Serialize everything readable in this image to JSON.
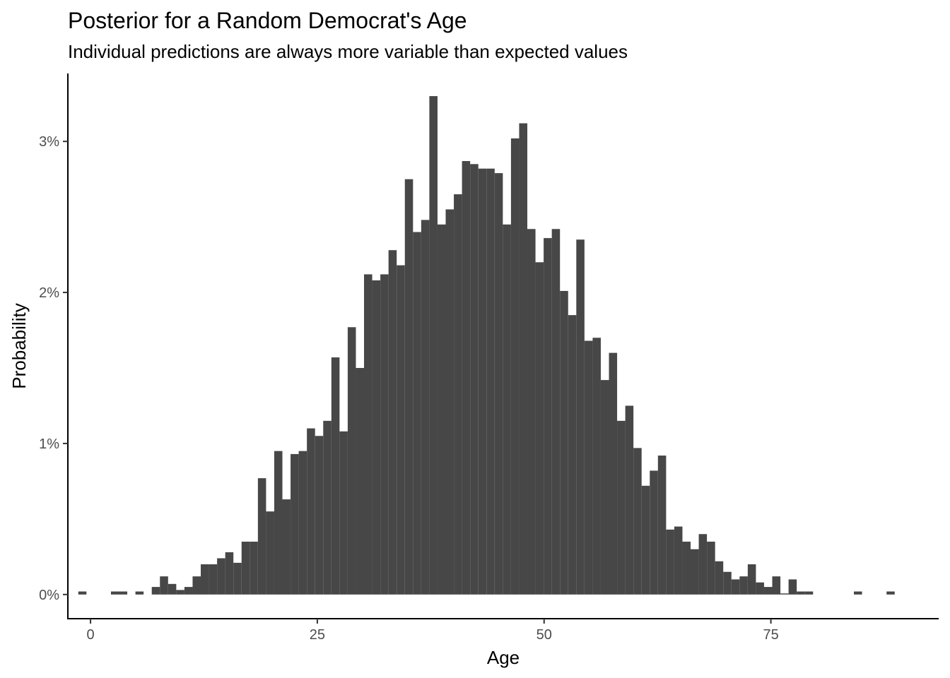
{
  "chart_data": {
    "type": "bar",
    "title": "Posterior for a Random Democrat's Age",
    "subtitle": "Individual predictions are always more variable than expected values",
    "xlabel": "Age",
    "ylabel": "Probability",
    "bin_width": 0.9,
    "xlim": [
      -2.5,
      93.5
    ],
    "ylim": [
      -0.0016,
      0.0345
    ],
    "x_ticks": [
      0,
      25,
      50,
      75
    ],
    "x_tick_labels": [
      "0",
      "25",
      "50",
      "75"
    ],
    "y_ticks": [
      0,
      0.01,
      0.02,
      0.03
    ],
    "y_tick_labels": [
      "0%",
      "1%",
      "2%",
      "3%"
    ],
    "grid": false,
    "legend": "none",
    "bar_color": "#474747",
    "x": [
      -0.9,
      2.7,
      3.6,
      5.4,
      7.2,
      8.1,
      9.0,
      9.9,
      10.8,
      11.7,
      12.6,
      13.5,
      14.4,
      15.3,
      16.2,
      17.1,
      18.0,
      18.9,
      19.8,
      20.7,
      21.6,
      22.5,
      23.4,
      24.3,
      25.2,
      26.1,
      27.0,
      27.9,
      28.8,
      29.7,
      30.6,
      31.5,
      32.4,
      33.3,
      34.2,
      35.1,
      36.0,
      36.9,
      37.8,
      38.7,
      39.6,
      40.5,
      41.4,
      42.3,
      43.2,
      44.1,
      45.0,
      45.9,
      46.8,
      47.7,
      48.6,
      49.5,
      50.4,
      51.3,
      52.2,
      53.1,
      54.0,
      54.9,
      55.8,
      56.7,
      57.6,
      58.5,
      59.4,
      60.3,
      61.2,
      62.1,
      63.0,
      63.9,
      64.8,
      65.7,
      66.6,
      67.5,
      68.4,
      69.3,
      70.2,
      71.1,
      72.0,
      72.9,
      73.8,
      74.7,
      75.6,
      76.5,
      77.4,
      78.3,
      79.2,
      84.6,
      88.2
    ],
    "values": [
      0.0002,
      0.0002,
      0.0002,
      0.0002,
      0.0005,
      0.0012,
      0.0007,
      0.0003,
      0.0005,
      0.0012,
      0.002,
      0.002,
      0.0024,
      0.0028,
      0.0021,
      0.0035,
      0.0035,
      0.0077,
      0.0055,
      0.0095,
      0.0063,
      0.0093,
      0.0095,
      0.011,
      0.0105,
      0.0115,
      0.0157,
      0.0108,
      0.0177,
      0.015,
      0.0212,
      0.0208,
      0.0212,
      0.0228,
      0.0218,
      0.0275,
      0.024,
      0.0248,
      0.033,
      0.0245,
      0.0255,
      0.0265,
      0.0287,
      0.0285,
      0.0282,
      0.0282,
      0.0279,
      0.0245,
      0.0302,
      0.0312,
      0.0242,
      0.022,
      0.0236,
      0.0242,
      0.0201,
      0.0185,
      0.0235,
      0.0168,
      0.017,
      0.0142,
      0.016,
      0.0115,
      0.0125,
      0.0097,
      0.0072,
      0.0082,
      0.0092,
      0.0043,
      0.0045,
      0.0035,
      0.003,
      0.004,
      0.0035,
      0.0022,
      0.0015,
      0.001,
      0.0012,
      0.002,
      0.0008,
      0.0005,
      0.0012,
      0.0,
      0.001,
      0.0002,
      0.0002,
      0.0002,
      0.0002
    ]
  }
}
